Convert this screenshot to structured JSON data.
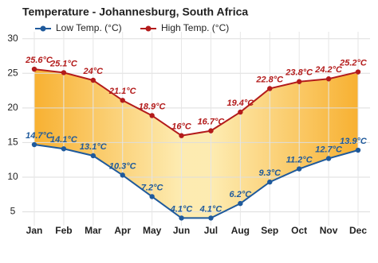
{
  "chart_data": {
    "type": "line",
    "title": "Temperature - Johannesburg, South Africa",
    "categories": [
      "Jan",
      "Feb",
      "Mar",
      "Apr",
      "May",
      "Jun",
      "Jul",
      "Aug",
      "Sep",
      "Oct",
      "Nov",
      "Dec"
    ],
    "series": [
      {
        "name": "Low Temp. (°C)",
        "color": "#1f5a9c",
        "values": [
          14.7,
          14.1,
          13.1,
          10.3,
          7.2,
          4.1,
          4.1,
          6.2,
          9.3,
          11.2,
          12.7,
          13.9
        ],
        "value_labels": [
          "14.7°C",
          "14.1°C",
          "13.1°C",
          "10.3°C",
          "7.2°C",
          "4.1°C",
          "4.1°C",
          "6.2°C",
          "9.3°C",
          "11.2°C",
          "12.7°C",
          "13.9°C"
        ]
      },
      {
        "name": "High Temp. (°C)",
        "color": "#b31b1b",
        "values": [
          25.6,
          25.1,
          24,
          21.1,
          18.9,
          16,
          16.7,
          19.4,
          22.8,
          23.8,
          24.2,
          25.2
        ],
        "value_labels": [
          "25.6°C",
          "25.1°C",
          "24°C",
          "21.1°C",
          "18.9°C",
          "16°C",
          "16.7°C",
          "19.4°C",
          "22.8°C",
          "23.8°C",
          "24.2°C",
          "25.2°C"
        ]
      }
    ],
    "ylim": [
      3,
      31
    ],
    "yticks": [
      5,
      10,
      15,
      20,
      25,
      30
    ],
    "grid": true
  }
}
